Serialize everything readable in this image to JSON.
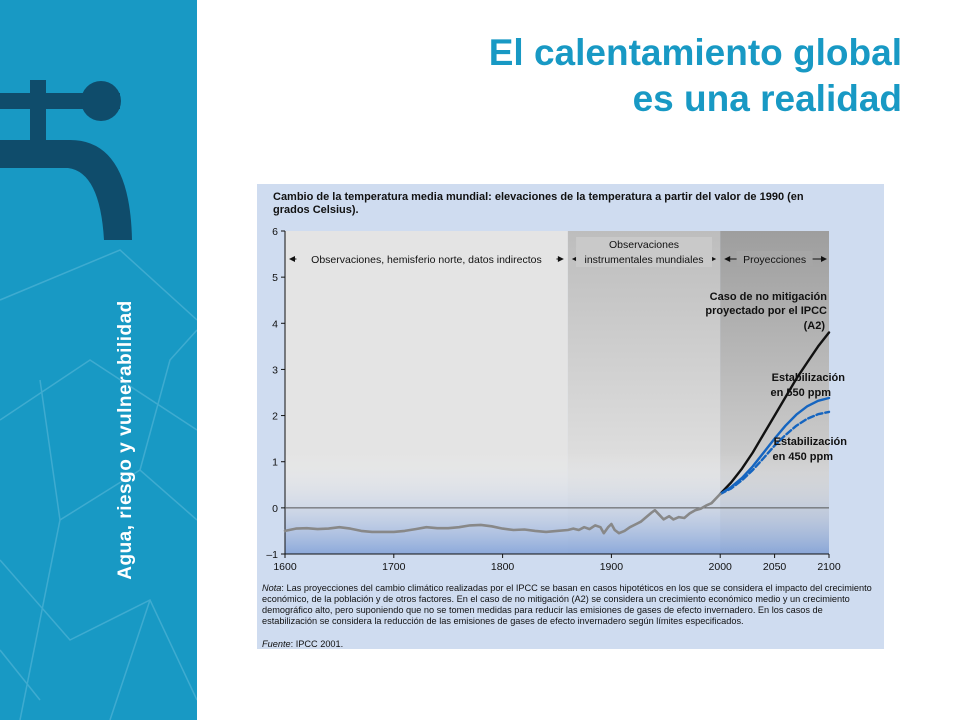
{
  "sidebar": {
    "vertical_label": "Agua, riesgo y vulnerabilidad",
    "background_color": "#1899c4",
    "icon": "water-faucet-icon"
  },
  "slide": {
    "title_line1": "El calentamiento global",
    "title_line2": "es una realidad",
    "title_color": "#1899c4"
  },
  "chart_data": {
    "type": "line",
    "title": "Cambio de la temperatura media mundial: elevaciones de la temperatura a partir del valor de 1990 (en grados Celsius).",
    "xlim": [
      1600,
      2100
    ],
    "ylim": [
      -1,
      6
    ],
    "x_ticks": [
      "1600",
      "1700",
      "1800",
      "1900",
      "2000",
      "2050",
      "2100"
    ],
    "x_tick_values": [
      1600,
      1700,
      1800,
      1900,
      2000,
      2050,
      2100
    ],
    "y_ticks": [
      "6",
      "5",
      "4",
      "3",
      "2",
      "1",
      "0",
      "–1"
    ],
    "y_tick_values": [
      6,
      5,
      4,
      3,
      2,
      1,
      0,
      -1
    ],
    "periods": [
      {
        "label": "Observaciones, hemisferio norte, datos indirectos",
        "from": 1600,
        "to": 1860
      },
      {
        "label_line1": "Observaciones",
        "label_line2": "instrumentales mundiales",
        "from": 1860,
        "to": 2000
      },
      {
        "label": "Proyecciones",
        "from": 2000,
        "to": 2100
      }
    ],
    "series": [
      {
        "name_line1": "Caso de no mitigación",
        "name_line2": "proyectado por el IPCC",
        "name_line3": "(A2)",
        "color": "#111111",
        "dashed": false,
        "points": [
          [
            2000,
            0.3
          ],
          [
            2010,
            0.55
          ],
          [
            2020,
            0.85
          ],
          [
            2030,
            1.2
          ],
          [
            2040,
            1.6
          ],
          [
            2050,
            2.0
          ],
          [
            2060,
            2.4
          ],
          [
            2070,
            2.8
          ],
          [
            2080,
            3.15
          ],
          [
            2090,
            3.5
          ],
          [
            2100,
            3.8
          ]
        ]
      },
      {
        "name_line1": "Estabilización",
        "name_line2": "en 550 ppm",
        "color": "#1565c0",
        "dashed": false,
        "points": [
          [
            2000,
            0.3
          ],
          [
            2010,
            0.45
          ],
          [
            2020,
            0.65
          ],
          [
            2030,
            0.9
          ],
          [
            2040,
            1.2
          ],
          [
            2050,
            1.5
          ],
          [
            2060,
            1.78
          ],
          [
            2070,
            2.02
          ],
          [
            2080,
            2.2
          ],
          [
            2090,
            2.32
          ],
          [
            2100,
            2.38
          ]
        ]
      },
      {
        "name_line1": "Estabilización",
        "name_line2": "en 450 ppm",
        "color": "#1565c0",
        "dashed": true,
        "points": [
          [
            2000,
            0.3
          ],
          [
            2010,
            0.42
          ],
          [
            2020,
            0.6
          ],
          [
            2030,
            0.82
          ],
          [
            2040,
            1.08
          ],
          [
            2050,
            1.35
          ],
          [
            2060,
            1.58
          ],
          [
            2070,
            1.78
          ],
          [
            2080,
            1.93
          ],
          [
            2090,
            2.03
          ],
          [
            2100,
            2.08
          ]
        ]
      },
      {
        "color": "#888888",
        "dashed": false,
        "points": [
          [
            1600,
            -0.5
          ],
          [
            1610,
            -0.45
          ],
          [
            1620,
            -0.44
          ],
          [
            1630,
            -0.46
          ],
          [
            1640,
            -0.45
          ],
          [
            1650,
            -0.42
          ],
          [
            1660,
            -0.45
          ],
          [
            1670,
            -0.5
          ],
          [
            1680,
            -0.52
          ],
          [
            1690,
            -0.52
          ],
          [
            1700,
            -0.52
          ],
          [
            1710,
            -0.5
          ],
          [
            1720,
            -0.46
          ],
          [
            1730,
            -0.42
          ],
          [
            1740,
            -0.44
          ],
          [
            1750,
            -0.44
          ],
          [
            1760,
            -0.42
          ],
          [
            1770,
            -0.38
          ],
          [
            1780,
            -0.37
          ],
          [
            1790,
            -0.4
          ],
          [
            1800,
            -0.45
          ],
          [
            1810,
            -0.48
          ],
          [
            1820,
            -0.47
          ],
          [
            1830,
            -0.5
          ],
          [
            1840,
            -0.52
          ],
          [
            1850,
            -0.5
          ],
          [
            1860,
            -0.48
          ],
          [
            1865,
            -0.45
          ],
          [
            1870,
            -0.48
          ],
          [
            1875,
            -0.42
          ],
          [
            1880,
            -0.46
          ],
          [
            1885,
            -0.38
          ],
          [
            1890,
            -0.42
          ],
          [
            1893,
            -0.55
          ],
          [
            1897,
            -0.42
          ],
          [
            1900,
            -0.35
          ],
          [
            1903,
            -0.48
          ],
          [
            1907,
            -0.55
          ],
          [
            1912,
            -0.5
          ],
          [
            1917,
            -0.42
          ],
          [
            1922,
            -0.36
          ],
          [
            1927,
            -0.3
          ],
          [
            1932,
            -0.2
          ],
          [
            1937,
            -0.1
          ],
          [
            1940,
            -0.05
          ],
          [
            1944,
            -0.15
          ],
          [
            1948,
            -0.25
          ],
          [
            1953,
            -0.18
          ],
          [
            1957,
            -0.25
          ],
          [
            1962,
            -0.2
          ],
          [
            1967,
            -0.22
          ],
          [
            1972,
            -0.12
          ],
          [
            1977,
            -0.05
          ],
          [
            1982,
            -0.02
          ],
          [
            1987,
            0.05
          ],
          [
            1992,
            0.1
          ],
          [
            1996,
            0.2
          ],
          [
            2000,
            0.3
          ]
        ]
      }
    ],
    "grid": false,
    "reference_line_y": 0
  },
  "note": {
    "label": "Nota",
    "text": ": Las proyecciones del cambio climático realizadas por el IPCC se basan en casos hipotéticos en los que se considera el impacto del crecimiento económico, de la población y de otros factores. En el caso de no mitigación (A2) se considera un crecimiento económico medio y un crecimiento demográfico alto, pero suponiendo que no se tomen medidas para reducir las emisiones de gases de efecto invernadero. En los casos de estabilización se considera la reducción de las emisiones de gases de efecto invernadero según límites especificados."
  },
  "source": {
    "label": "Fuente",
    "text": ": IPCC 2001."
  }
}
